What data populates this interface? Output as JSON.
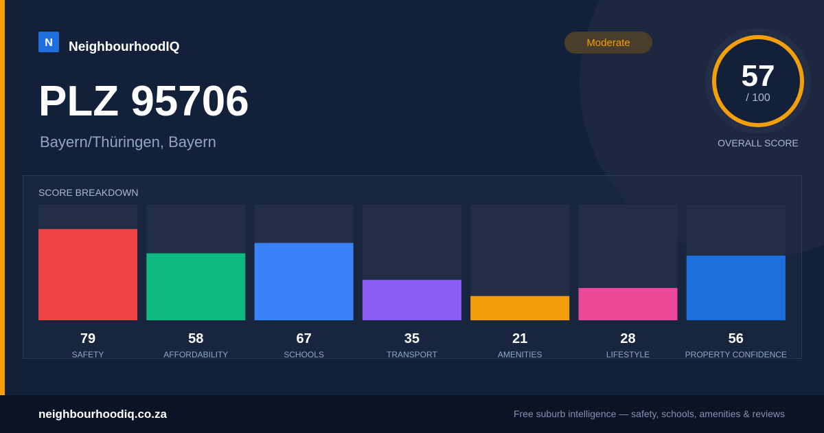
{
  "brand": {
    "logo": "N",
    "name": "NeighbourhoodIQ"
  },
  "badge": "Moderate",
  "title": "PLZ 95706",
  "subtitle": "Bayern/Thüringen, Bayern",
  "overall": {
    "score": 57,
    "max_label": "/ 100",
    "label": "OVERALL SCORE"
  },
  "chart_data": {
    "type": "bar",
    "title": "SCORE BREAKDOWN",
    "categories": [
      "SAFETY",
      "AFFORDABILITY",
      "SCHOOLS",
      "TRANSPORT",
      "AMENITIES",
      "LIFESTYLE",
      "PROPERTY CONFIDENCE"
    ],
    "values": [
      79,
      58,
      67,
      35,
      21,
      28,
      56
    ],
    "colors": [
      "#ef4444",
      "#10b981",
      "#3b82f6",
      "#8b5cf6",
      "#f59e0b",
      "#ec4899",
      "#1d6fdc"
    ],
    "ylim": [
      0,
      100
    ]
  },
  "footer": {
    "site": "neighbourhoodiq.co.za",
    "tagline": "Free suburb intelligence — safety, schools, amenities & reviews"
  }
}
